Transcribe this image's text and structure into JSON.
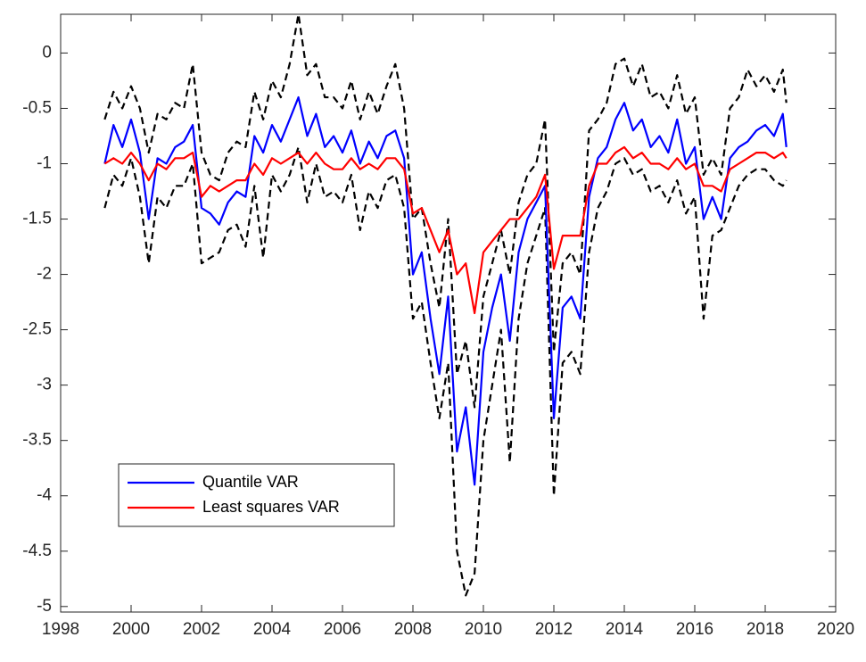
{
  "chart_data": {
    "type": "line",
    "x": [
      1999.25,
      1999.5,
      1999.75,
      2000,
      2000.25,
      2000.5,
      2000.75,
      2001,
      2001.25,
      2001.5,
      2001.75,
      2002,
      2002.25,
      2002.5,
      2002.75,
      2003,
      2003.25,
      2003.5,
      2003.75,
      2004,
      2004.25,
      2004.5,
      2004.75,
      2005,
      2005.25,
      2005.5,
      2005.75,
      2006,
      2006.25,
      2006.5,
      2006.75,
      2007,
      2007.25,
      2007.5,
      2007.75,
      2008,
      2008.25,
      2008.5,
      2008.75,
      2009,
      2009.25,
      2009.5,
      2009.75,
      2010,
      2010.25,
      2010.5,
      2010.75,
      2011,
      2011.25,
      2011.5,
      2011.75,
      2012,
      2012.25,
      2012.5,
      2012.75,
      2013,
      2013.25,
      2013.5,
      2013.75,
      2014,
      2014.25,
      2014.5,
      2014.75,
      2015,
      2015.25,
      2015.5,
      2015.75,
      2016,
      2016.25,
      2016.5,
      2016.75,
      2017,
      2017.25,
      2017.5,
      2017.75,
      2018,
      2018.25,
      2018.5,
      2018.6
    ],
    "series": [
      {
        "name": "Quantile VAR",
        "color": "#0000ff",
        "style": "solid",
        "values": [
          -1.0,
          -0.65,
          -0.85,
          -0.6,
          -0.9,
          -1.5,
          -0.95,
          -1.0,
          -0.85,
          -0.8,
          -0.65,
          -1.4,
          -1.45,
          -1.55,
          -1.35,
          -1.25,
          -1.3,
          -0.75,
          -0.9,
          -0.65,
          -0.8,
          -0.6,
          -0.4,
          -0.75,
          -0.55,
          -0.85,
          -0.75,
          -0.9,
          -0.7,
          -1.0,
          -0.8,
          -0.95,
          -0.75,
          -0.7,
          -0.95,
          -2.0,
          -1.8,
          -2.4,
          -2.9,
          -2.2,
          -3.6,
          -3.2,
          -3.9,
          -2.7,
          -2.3,
          -2.0,
          -2.6,
          -1.8,
          -1.5,
          -1.35,
          -1.2,
          -3.3,
          -2.3,
          -2.2,
          -2.4,
          -1.3,
          -0.95,
          -0.85,
          -0.6,
          -0.45,
          -0.7,
          -0.6,
          -0.85,
          -0.75,
          -0.9,
          -0.6,
          -1.0,
          -0.85,
          -1.5,
          -1.3,
          -1.5,
          -0.95,
          -0.85,
          -0.8,
          -0.7,
          -0.65,
          -0.75,
          -0.55,
          -0.85
        ]
      },
      {
        "name": "Least squares VAR",
        "color": "#ff0000",
        "style": "solid",
        "values": [
          -1.0,
          -0.95,
          -1.0,
          -0.9,
          -1.0,
          -1.15,
          -1.0,
          -1.05,
          -0.95,
          -0.95,
          -0.9,
          -1.3,
          -1.2,
          -1.25,
          -1.2,
          -1.15,
          -1.15,
          -1.0,
          -1.1,
          -0.95,
          -1.0,
          -0.95,
          -0.9,
          -1.0,
          -0.9,
          -1.0,
          -1.05,
          -1.05,
          -0.95,
          -1.05,
          -1.0,
          -1.05,
          -0.95,
          -0.95,
          -1.05,
          -1.45,
          -1.4,
          -1.6,
          -1.8,
          -1.6,
          -2.0,
          -1.9,
          -2.35,
          -1.8,
          -1.7,
          -1.6,
          -1.5,
          -1.5,
          -1.4,
          -1.3,
          -1.1,
          -1.95,
          -1.65,
          -1.65,
          -1.65,
          -1.2,
          -1.0,
          -1.0,
          -0.9,
          -0.85,
          -0.95,
          -0.9,
          -1.0,
          -1.0,
          -1.05,
          -0.95,
          -1.05,
          -1.0,
          -1.2,
          -1.2,
          -1.25,
          -1.05,
          -1.0,
          -0.95,
          -0.9,
          -0.9,
          -0.95,
          -0.9,
          -0.95
        ]
      },
      {
        "color": "#000000",
        "style": "dashed",
        "values": [
          -0.6,
          -0.35,
          -0.5,
          -0.3,
          -0.5,
          -0.9,
          -0.55,
          -0.6,
          -0.45,
          -0.5,
          -0.1,
          -0.9,
          -1.1,
          -1.15,
          -0.9,
          -0.8,
          -0.85,
          -0.35,
          -0.6,
          -0.25,
          -0.4,
          -0.1,
          0.35,
          -0.2,
          -0.1,
          -0.4,
          -0.4,
          -0.5,
          -0.25,
          -0.6,
          -0.35,
          -0.55,
          -0.3,
          -0.1,
          -0.5,
          -1.5,
          -1.4,
          -1.9,
          -2.3,
          -1.5,
          -2.9,
          -2.6,
          -3.2,
          -2.2,
          -1.9,
          -1.6,
          -2.0,
          -1.35,
          -1.1,
          -1.0,
          -0.6,
          -2.7,
          -1.9,
          -1.8,
          -2.0,
          -0.7,
          -0.6,
          -0.45,
          -0.1,
          -0.05,
          -0.3,
          -0.1,
          -0.4,
          -0.35,
          -0.5,
          -0.2,
          -0.55,
          -0.4,
          -1.1,
          -0.95,
          -1.1,
          -0.5,
          -0.4,
          -0.15,
          -0.3,
          -0.2,
          -0.35,
          -0.15,
          -0.45
        ]
      },
      {
        "color": "#000000",
        "style": "dashed",
        "values": [
          -1.4,
          -1.1,
          -1.2,
          -0.95,
          -1.3,
          -1.9,
          -1.3,
          -1.4,
          -1.2,
          -1.2,
          -1.0,
          -1.9,
          -1.85,
          -1.8,
          -1.6,
          -1.55,
          -1.75,
          -1.2,
          -1.85,
          -1.1,
          -1.25,
          -1.1,
          -0.85,
          -1.35,
          -1.0,
          -1.3,
          -1.25,
          -1.35,
          -1.1,
          -1.6,
          -1.25,
          -1.4,
          -1.15,
          -1.1,
          -1.4,
          -2.4,
          -2.25,
          -2.8,
          -3.3,
          -2.8,
          -4.5,
          -4.9,
          -4.7,
          -3.5,
          -3.0,
          -2.5,
          -3.7,
          -2.4,
          -1.9,
          -1.65,
          -1.4,
          -4.0,
          -2.8,
          -2.7,
          -2.9,
          -1.8,
          -1.4,
          -1.25,
          -1.0,
          -0.95,
          -1.1,
          -1.05,
          -1.25,
          -1.2,
          -1.35,
          -1.15,
          -1.45,
          -1.3,
          -2.4,
          -1.65,
          -1.6,
          -1.4,
          -1.2,
          -1.1,
          -1.05,
          -1.05,
          -1.15,
          -1.2,
          -1.15
        ]
      }
    ],
    "xlim": [
      1998,
      2020
    ],
    "xticks": [
      1998,
      2000,
      2002,
      2004,
      2006,
      2008,
      2010,
      2012,
      2014,
      2016,
      2018,
      2020
    ],
    "ylim": [
      -5.05,
      0.35
    ],
    "yticks": [
      0,
      -0.5,
      -1,
      -1.5,
      -2,
      -2.5,
      -3,
      -3.5,
      -4,
      -4.5,
      -5
    ],
    "legend": "lower left"
  }
}
